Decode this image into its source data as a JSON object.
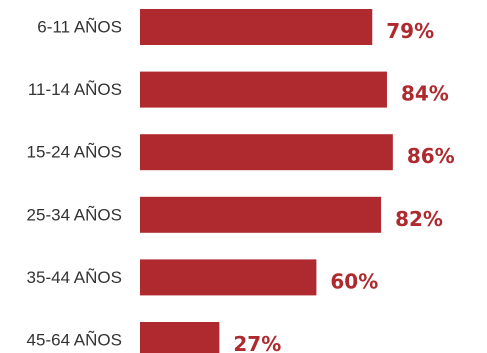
{
  "chart_data": {
    "type": "bar",
    "orientation": "horizontal",
    "categories": [
      "6-11 AÑOS",
      "11-14 AÑOS",
      "15-24 AÑOS",
      "25-34 AÑOS",
      "35-44 AÑOS",
      "45-64 AÑOS"
    ],
    "values": [
      79,
      84,
      86,
      82,
      60,
      27
    ],
    "value_labels": [
      "79%",
      "84%",
      "86%",
      "82%",
      "60%",
      "27%"
    ],
    "unit": "%",
    "xlim": [
      0,
      100
    ],
    "title": "",
    "xlabel": "",
    "ylabel": "",
    "grid": false,
    "legend": "none"
  },
  "colors": {
    "bar": "#ae2a2e",
    "value_label": "#ae2a2e",
    "category_label": "#333333",
    "background": "#ffffff"
  }
}
